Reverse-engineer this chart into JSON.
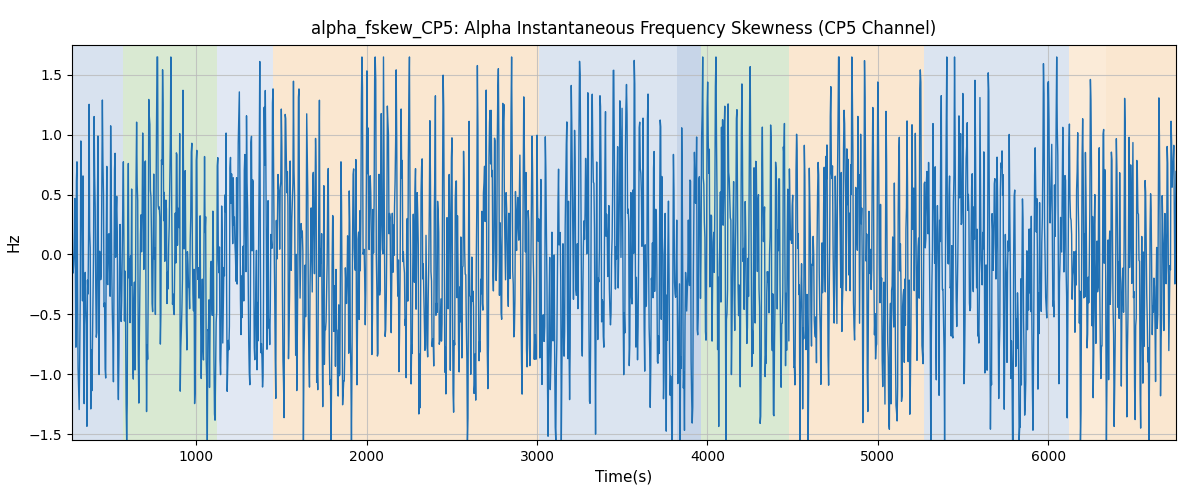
{
  "title": "alpha_fskew_CP5: Alpha Instantaneous Frequency Skewness (CP5 Channel)",
  "xlabel": "Time(s)",
  "ylabel": "Hz",
  "ylim": [
    -1.55,
    1.75
  ],
  "yticks": [
    -1.5,
    -1.0,
    -0.5,
    0.0,
    0.5,
    1.0,
    1.5
  ],
  "xlim": [
    270,
    6750
  ],
  "xticks": [
    1000,
    2000,
    3000,
    4000,
    5000,
    6000
  ],
  "line_color": "#2070b4",
  "line_width": 1.0,
  "bg_color": "#ffffff",
  "grid_color": "#bbbbbb",
  "bands": [
    {
      "xmin": 270,
      "xmax": 570,
      "color": "#aabfdd",
      "alpha": 0.45
    },
    {
      "xmin": 570,
      "xmax": 1120,
      "color": "#a0c890",
      "alpha": 0.4
    },
    {
      "xmin": 1120,
      "xmax": 1450,
      "color": "#aabfdd",
      "alpha": 0.35
    },
    {
      "xmin": 1450,
      "xmax": 3010,
      "color": "#f5c890",
      "alpha": 0.42
    },
    {
      "xmin": 3010,
      "xmax": 3820,
      "color": "#aabfdd",
      "alpha": 0.42
    },
    {
      "xmin": 3820,
      "xmax": 3960,
      "color": "#aabfdd",
      "alpha": 0.65
    },
    {
      "xmin": 3960,
      "xmax": 4480,
      "color": "#a0c890",
      "alpha": 0.4
    },
    {
      "xmin": 4480,
      "xmax": 5270,
      "color": "#f5c890",
      "alpha": 0.42
    },
    {
      "xmin": 5270,
      "xmax": 6120,
      "color": "#aabfdd",
      "alpha": 0.42
    },
    {
      "xmin": 6120,
      "xmax": 6340,
      "color": "#f5c890",
      "alpha": 0.35
    },
    {
      "xmin": 6340,
      "xmax": 6750,
      "color": "#f5c890",
      "alpha": 0.42
    }
  ],
  "figsize": [
    12.0,
    5.0
  ],
  "dpi": 100,
  "title_fontsize": 12,
  "label_fontsize": 11
}
